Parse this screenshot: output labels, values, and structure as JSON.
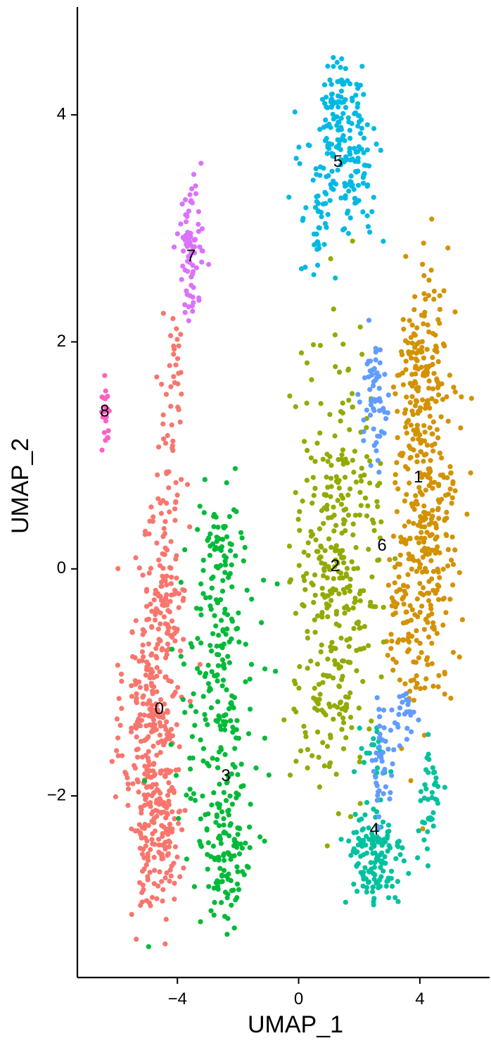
{
  "chart_data": {
    "type": "scatter",
    "xlabel": "UMAP_1",
    "ylabel": "UMAP_2",
    "xlim": [
      -7.3,
      6.3
    ],
    "ylim": [
      -3.6,
      4.95
    ],
    "xticks": [
      -4,
      0,
      4
    ],
    "yticks": [
      -2,
      0,
      2,
      4
    ],
    "tick_labels": {
      "x": [
        "−4",
        "0",
        "4"
      ],
      "y": [
        "−2",
        "0",
        "2",
        "4"
      ]
    },
    "grid": false,
    "legend": "none",
    "clusters": [
      {
        "label": "0",
        "color": "#F8766D",
        "label_pos": [
          -4.6,
          -1.24
        ],
        "regions": [
          {
            "center": [
              -4.8,
              -1.4
            ],
            "spread": [
              0.6,
              0.9
            ],
            "n": 330
          },
          {
            "center": [
              -4.6,
              -2.4
            ],
            "spread": [
              0.5,
              0.4
            ],
            "n": 90
          },
          {
            "center": [
              -4.4,
              -0.2
            ],
            "spread": [
              0.45,
              0.35
            ],
            "n": 70
          },
          {
            "center": [
              -4.3,
              0.8
            ],
            "spread": [
              0.3,
              0.6
            ],
            "n": 40
          },
          {
            "center": [
              -4.1,
              1.7
            ],
            "spread": [
              0.25,
              0.4
            ],
            "n": 25
          }
        ]
      },
      {
        "label": "1",
        "color": "#D39200",
        "label_pos": [
          3.95,
          0.8
        ],
        "regions": [
          {
            "center": [
              4.2,
              0.6
            ],
            "spread": [
              0.65,
              1.1
            ],
            "n": 380
          },
          {
            "center": [
              4.0,
              1.8
            ],
            "spread": [
              0.5,
              0.45
            ],
            "n": 70
          },
          {
            "center": [
              3.3,
              -0.5
            ],
            "spread": [
              0.35,
              0.4
            ],
            "n": 40
          }
        ]
      },
      {
        "label": "2",
        "color": "#93AA00",
        "label_pos": [
          1.2,
          0.02
        ],
        "regions": [
          {
            "center": [
              1.3,
              0.1
            ],
            "spread": [
              0.9,
              1.05
            ],
            "n": 330
          },
          {
            "center": [
              1.0,
              -1.3
            ],
            "spread": [
              0.7,
              0.35
            ],
            "n": 50
          }
        ]
      },
      {
        "label": "3",
        "color": "#00BA38",
        "label_pos": [
          -2.4,
          -1.83
        ],
        "regions": [
          {
            "center": [
              -2.6,
              -1.2
            ],
            "spread": [
              0.75,
              0.95
            ],
            "n": 210
          },
          {
            "center": [
              -2.4,
              -2.5
            ],
            "spread": [
              0.6,
              0.4
            ],
            "n": 90
          },
          {
            "center": [
              -2.6,
              0.2
            ],
            "spread": [
              0.5,
              0.4
            ],
            "n": 50
          }
        ]
      },
      {
        "label": "4",
        "color": "#00C19F",
        "label_pos": [
          2.5,
          -2.3
        ],
        "regions": [
          {
            "center": [
              2.5,
              -2.55
            ],
            "spread": [
              0.6,
              0.3
            ],
            "n": 140
          },
          {
            "center": [
              4.3,
              -2.05
            ],
            "spread": [
              0.25,
              0.35
            ],
            "n": 40
          },
          {
            "center": [
              2.3,
              -1.6
            ],
            "spread": [
              0.35,
              0.2
            ],
            "n": 20
          }
        ]
      },
      {
        "label": "5",
        "color": "#00B9E3",
        "label_pos": [
          1.3,
          3.58
        ],
        "regions": [
          {
            "center": [
              1.5,
              3.6
            ],
            "spread": [
              0.75,
              0.4
            ],
            "n": 170
          },
          {
            "center": [
              1.2,
              4.2
            ],
            "spread": [
              0.4,
              0.2
            ],
            "n": 40
          },
          {
            "center": [
              0.6,
              2.9
            ],
            "spread": [
              0.25,
              0.25
            ],
            "n": 25
          }
        ]
      },
      {
        "label": "6",
        "color": "#619CFF",
        "label_pos": [
          2.75,
          0.2
        ],
        "regions": [
          {
            "center": [
              2.55,
              1.5
            ],
            "spread": [
              0.3,
              0.4
            ],
            "n": 60
          },
          {
            "center": [
              2.8,
              -1.75
            ],
            "spread": [
              0.2,
              0.3
            ],
            "n": 40
          },
          {
            "center": [
              3.5,
              -1.25
            ],
            "spread": [
              0.25,
              0.2
            ],
            "n": 25
          }
        ]
      },
      {
        "label": "7",
        "color": "#DB72FB",
        "label_pos": [
          -3.55,
          2.75
        ],
        "regions": [
          {
            "center": [
              -3.6,
              2.8
            ],
            "spread": [
              0.25,
              0.35
            ],
            "n": 75
          }
        ]
      },
      {
        "label": "8",
        "color": "#FF61C3",
        "label_pos": [
          -6.4,
          1.38
        ],
        "regions": [
          {
            "center": [
              -6.4,
              1.4
            ],
            "spread": [
              0.08,
              0.18
            ],
            "n": 22
          }
        ]
      }
    ]
  }
}
